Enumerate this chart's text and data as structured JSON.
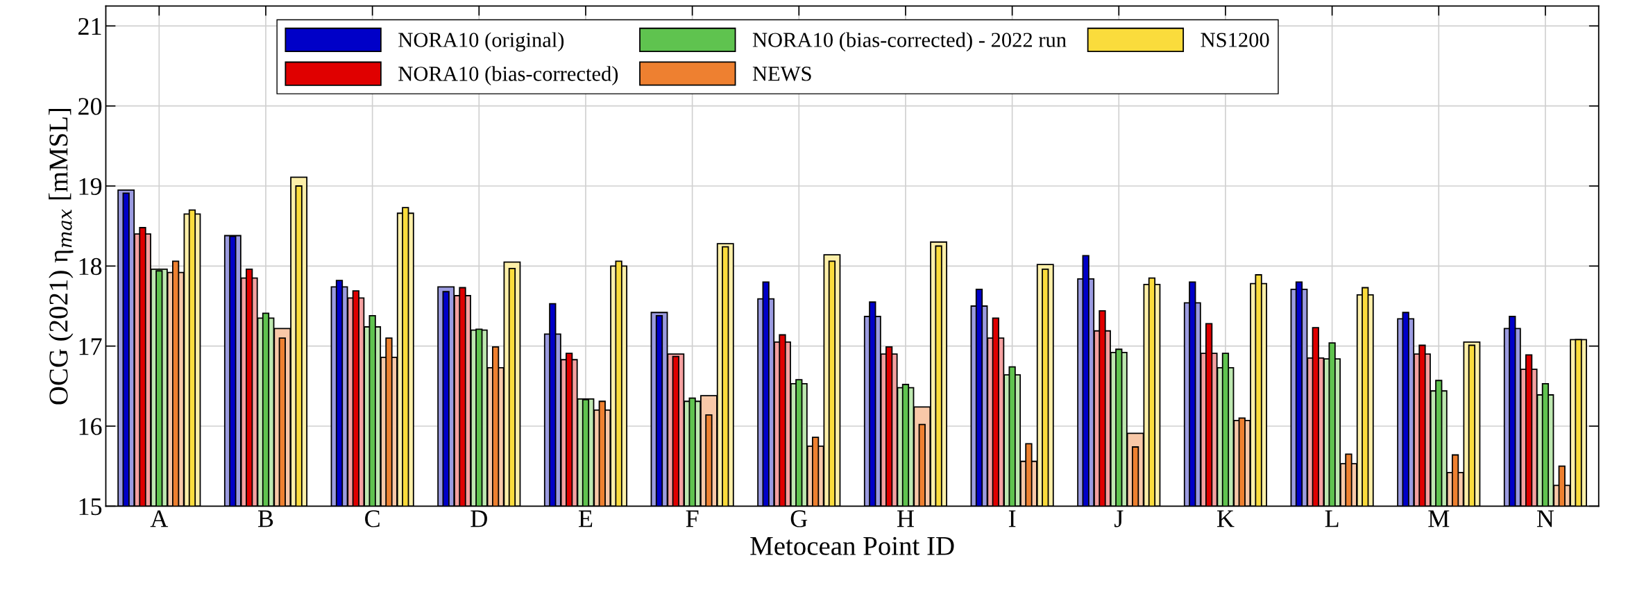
{
  "chart_data": {
    "type": "bar",
    "xlabel": "Metocean Point ID",
    "ylabel": "OCG (2021) η$_{max}$ [mMSL]",
    "categories": [
      "A",
      "B",
      "C",
      "D",
      "E",
      "F",
      "G",
      "H",
      "I",
      "J",
      "K",
      "L",
      "M",
      "N"
    ],
    "series": [
      {
        "name": "NORA10 (original)",
        "color": "#0000c8",
        "values": [
          18.91,
          18.37,
          17.82,
          17.68,
          17.53,
          17.38,
          17.8,
          17.55,
          17.71,
          18.13,
          17.8,
          17.8,
          17.42,
          17.37
        ]
      },
      {
        "color": "#9b9be0",
        "values": [
          18.95,
          18.38,
          17.74,
          17.74,
          17.15,
          17.42,
          17.59,
          17.37,
          17.5,
          17.84,
          17.54,
          17.71,
          17.34,
          17.22
        ]
      },
      {
        "name": "NORA10 (bias-corrected)",
        "color": "#e00000",
        "values": [
          18.48,
          17.96,
          17.69,
          17.73,
          16.91,
          16.87,
          17.14,
          16.99,
          17.35,
          17.44,
          17.28,
          17.23,
          17.01,
          16.89
        ]
      },
      {
        "color": "#f4a0a0",
        "values": [
          18.4,
          17.85,
          17.6,
          17.63,
          16.83,
          16.9,
          17.05,
          16.9,
          17.1,
          17.19,
          16.91,
          16.85,
          16.9,
          16.71
        ]
      },
      {
        "name": "NORA10 (bias-corrected) - 2022 run",
        "color": "#5fc34f",
        "values": [
          17.94,
          17.41,
          17.38,
          17.21,
          16.33,
          16.35,
          16.58,
          16.52,
          16.74,
          16.96,
          16.91,
          17.04,
          16.57,
          16.53
        ]
      },
      {
        "color": "#bde8b0",
        "values": [
          17.96,
          17.35,
          17.24,
          17.2,
          16.34,
          16.31,
          16.53,
          16.48,
          16.64,
          16.92,
          16.73,
          16.84,
          16.44,
          16.39
        ]
      },
      {
        "name": "NEWS",
        "color": "#ee8030",
        "values": [
          18.06,
          17.1,
          17.1,
          16.99,
          16.31,
          16.14,
          15.86,
          16.02,
          15.78,
          15.74,
          16.1,
          15.65,
          15.64,
          15.5
        ]
      },
      {
        "color": "#f8c8a8",
        "values": [
          17.92,
          17.22,
          16.86,
          16.73,
          16.2,
          16.38,
          15.75,
          16.24,
          15.56,
          15.91,
          16.07,
          15.53,
          15.42,
          15.26
        ]
      },
      {
        "name": "NS1200",
        "color": "#fadc3c",
        "values": [
          18.7,
          19.0,
          18.73,
          17.97,
          18.06,
          18.24,
          18.06,
          18.25,
          17.96,
          17.85,
          17.89,
          17.73,
          17.01,
          17.08
        ]
      },
      {
        "color": "#fcefa8",
        "values": [
          18.65,
          19.11,
          18.66,
          18.05,
          18.0,
          18.28,
          18.14,
          18.3,
          18.02,
          17.77,
          17.78,
          17.64,
          17.05,
          17.08
        ]
      }
    ],
    "ylim": [
      15,
      21.25
    ],
    "yticks": [
      15,
      16,
      17,
      18,
      19,
      20,
      21
    ],
    "grid": true,
    "legend": "top"
  }
}
